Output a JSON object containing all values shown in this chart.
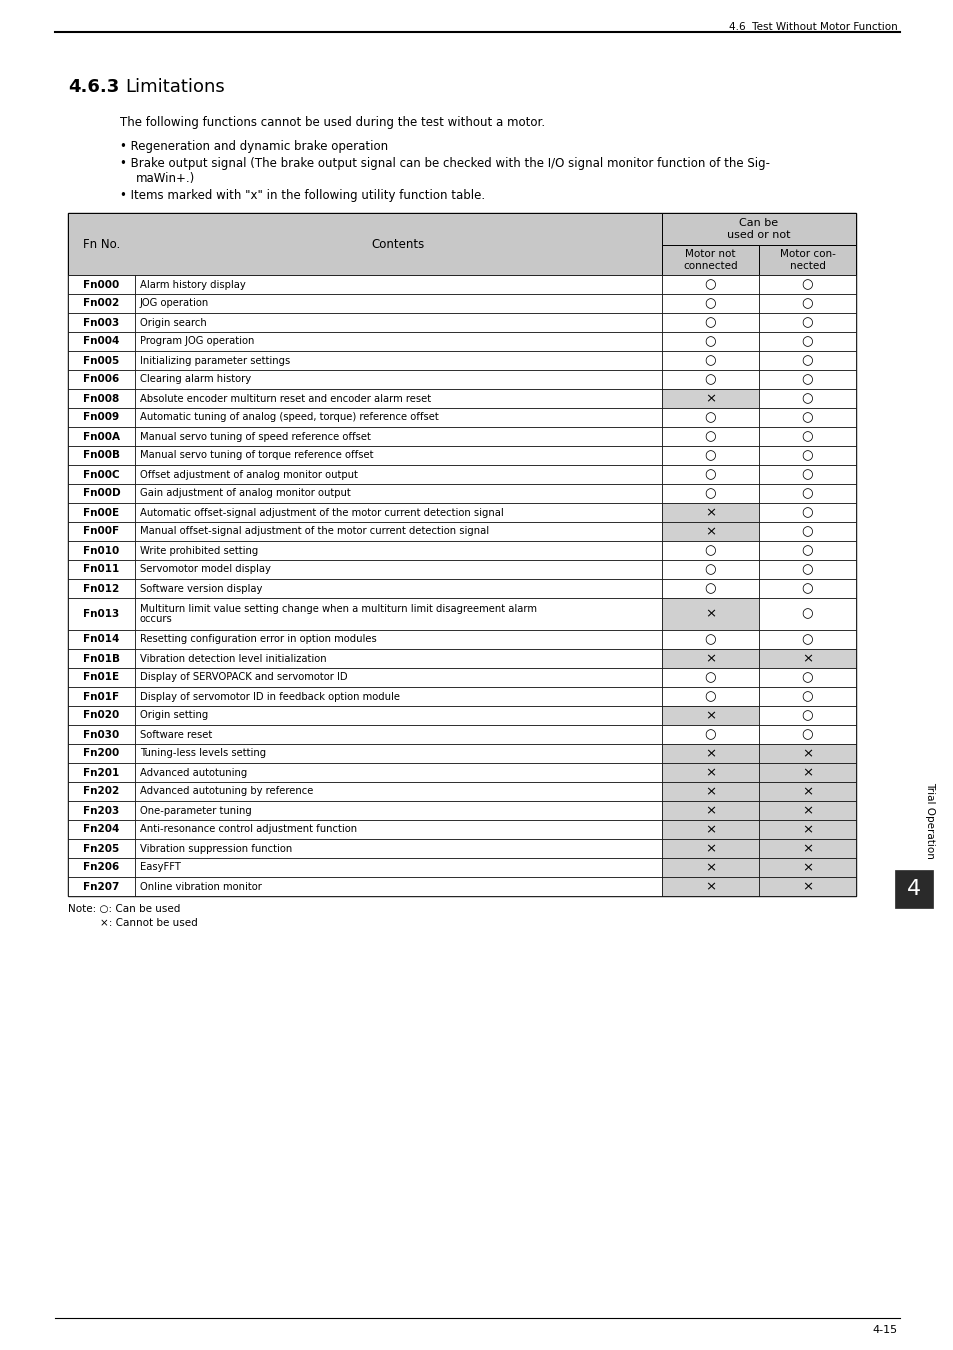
{
  "page_header_right": "4.6  Test Without Motor Function",
  "section_number": "4.6.3",
  "section_title": "Limitations",
  "intro_text": "The following functions cannot be used during the test without a motor.",
  "bullet1": "Regeneration and dynamic brake operation",
  "bullet2a": "Brake output signal (The brake output signal can be checked with the I/O signal monitor function of the Sig-",
  "bullet2b": "maWin+.)",
  "bullet3": "Items marked with \"x\" in the following utility function table.",
  "rows": [
    {
      "fn": "Fn000",
      "content": "Alarm history display",
      "motor_not": "O",
      "motor_con": "O"
    },
    {
      "fn": "Fn002",
      "content": "JOG operation",
      "motor_not": "O",
      "motor_con": "O"
    },
    {
      "fn": "Fn003",
      "content": "Origin search",
      "motor_not": "O",
      "motor_con": "O"
    },
    {
      "fn": "Fn004",
      "content": "Program JOG operation",
      "motor_not": "O",
      "motor_con": "O"
    },
    {
      "fn": "Fn005",
      "content": "Initializing parameter settings",
      "motor_not": "O",
      "motor_con": "O"
    },
    {
      "fn": "Fn006",
      "content": "Clearing alarm history",
      "motor_not": "O",
      "motor_con": "O"
    },
    {
      "fn": "Fn008",
      "content": "Absolute encoder multiturn reset and encoder alarm reset",
      "motor_not": "X",
      "motor_con": "O"
    },
    {
      "fn": "Fn009",
      "content": "Automatic tuning of analog (speed, torque) reference offset",
      "motor_not": "O",
      "motor_con": "O"
    },
    {
      "fn": "Fn00A",
      "content": "Manual servo tuning of speed reference offset",
      "motor_not": "O",
      "motor_con": "O"
    },
    {
      "fn": "Fn00B",
      "content": "Manual servo tuning of torque reference offset",
      "motor_not": "O",
      "motor_con": "O"
    },
    {
      "fn": "Fn00C",
      "content": "Offset adjustment of analog monitor output",
      "motor_not": "O",
      "motor_con": "O"
    },
    {
      "fn": "Fn00D",
      "content": "Gain adjustment of analog monitor output",
      "motor_not": "O",
      "motor_con": "O"
    },
    {
      "fn": "Fn00E",
      "content": "Automatic offset-signal adjustment of the motor current detection signal",
      "motor_not": "X",
      "motor_con": "O"
    },
    {
      "fn": "Fn00F",
      "content": "Manual offset-signal adjustment of the motor current detection signal",
      "motor_not": "X",
      "motor_con": "O"
    },
    {
      "fn": "Fn010",
      "content": "Write prohibited setting",
      "motor_not": "O",
      "motor_con": "O"
    },
    {
      "fn": "Fn011",
      "content": "Servomotor model display",
      "motor_not": "O",
      "motor_con": "O"
    },
    {
      "fn": "Fn012",
      "content": "Software version display",
      "motor_not": "O",
      "motor_con": "O"
    },
    {
      "fn": "Fn013",
      "content": "Multiturn limit value setting change when a multiturn limit disagreement alarm\noccurs",
      "motor_not": "X",
      "motor_con": "O",
      "tall": true
    },
    {
      "fn": "Fn014",
      "content": "Resetting configuration error in option modules",
      "motor_not": "O",
      "motor_con": "O"
    },
    {
      "fn": "Fn01B",
      "content": "Vibration detection level initialization",
      "motor_not": "X",
      "motor_con": "X"
    },
    {
      "fn": "Fn01E",
      "content": "Display of SERVOPACK and servomotor ID",
      "motor_not": "O",
      "motor_con": "O"
    },
    {
      "fn": "Fn01F",
      "content": "Display of servomotor ID in feedback option module",
      "motor_not": "O",
      "motor_con": "O"
    },
    {
      "fn": "Fn020",
      "content": "Origin setting",
      "motor_not": "X",
      "motor_con": "O"
    },
    {
      "fn": "Fn030",
      "content": "Software reset",
      "motor_not": "O",
      "motor_con": "O"
    },
    {
      "fn": "Fn200",
      "content": "Tuning-less levels setting",
      "motor_not": "X",
      "motor_con": "X"
    },
    {
      "fn": "Fn201",
      "content": "Advanced autotuning",
      "motor_not": "X",
      "motor_con": "X"
    },
    {
      "fn": "Fn202",
      "content": "Advanced autotuning by reference",
      "motor_not": "X",
      "motor_con": "X"
    },
    {
      "fn": "Fn203",
      "content": "One-parameter tuning",
      "motor_not": "X",
      "motor_con": "X"
    },
    {
      "fn": "Fn204",
      "content": "Anti-resonance control adjustment function",
      "motor_not": "X",
      "motor_con": "X"
    },
    {
      "fn": "Fn205",
      "content": "Vibration suppression function",
      "motor_not": "X",
      "motor_con": "X"
    },
    {
      "fn": "Fn206",
      "content": "EasyFFT",
      "motor_not": "X",
      "motor_con": "X"
    },
    {
      "fn": "Fn207",
      "content": "Online vibration monitor",
      "motor_not": "X",
      "motor_con": "X"
    }
  ],
  "page_number": "4-15",
  "bg_color": "#ffffff",
  "header_bg": "#c8c8c8",
  "x_bg": "#d0d0d0"
}
